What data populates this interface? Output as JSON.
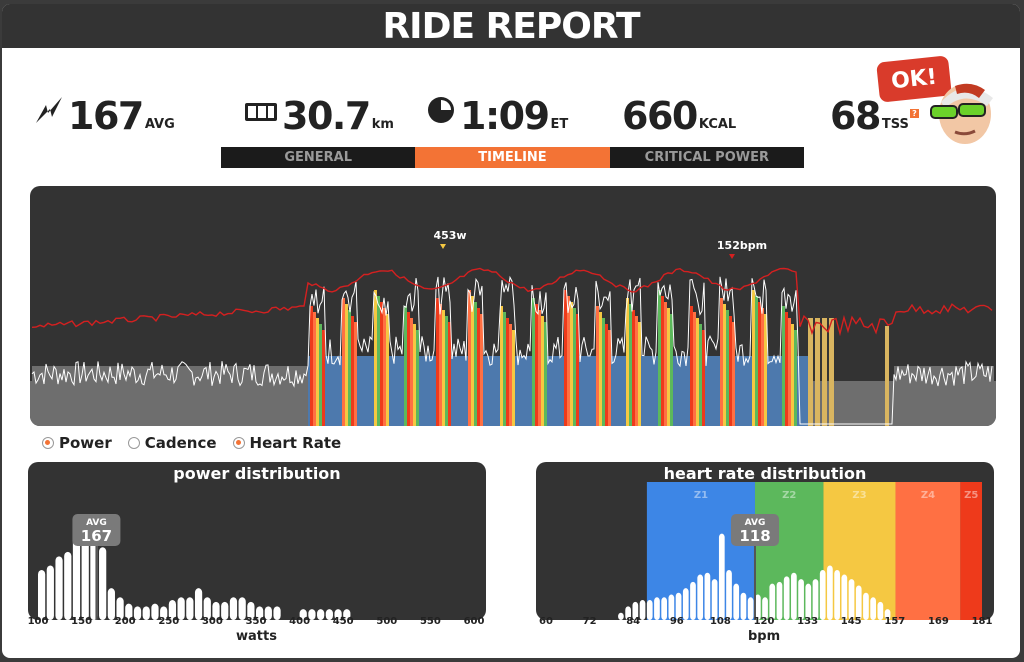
{
  "title": "RIDE REPORT",
  "stats": {
    "power_value": "167",
    "power_unit": "AVG",
    "distance_value": "30.7",
    "distance_unit": "km",
    "time_value": "1:09",
    "time_unit": "ET",
    "energy_value": "660",
    "energy_unit": "KCAL",
    "tss_value": "68",
    "tss_unit": "TSS"
  },
  "badge": "OK!",
  "tabs": [
    {
      "label": "GENERAL",
      "active": false
    },
    {
      "label": "TIMELINE",
      "active": true
    },
    {
      "label": "CRITICAL POWER",
      "active": false
    }
  ],
  "timeline": {
    "peak_power_label": "453w",
    "peak_hr_label": "152bpm"
  },
  "legend": [
    {
      "label": "Power",
      "on": true
    },
    {
      "label": "Cadence",
      "on": false
    },
    {
      "label": "Heart Rate",
      "on": true
    }
  ],
  "colors": {
    "accent": "#f37335",
    "hr_line": "#d42020",
    "panel_dark": "#333333",
    "z1": "#3d86e6",
    "z2": "#5cb85c",
    "z3": "#f5c842",
    "z4": "#ff7043",
    "z5": "#ee3a1b"
  },
  "chart_data": [
    {
      "type": "bar",
      "title": "power distribution",
      "xlabel": "watts",
      "x_ticks": [
        "100",
        "150",
        "200",
        "250",
        "300",
        "350",
        "400",
        "450",
        "500",
        "550",
        "600"
      ],
      "xlim": [
        100,
        600
      ],
      "avg_label": "AVG",
      "avg_value": "167",
      "bins_x": [
        100,
        110,
        120,
        130,
        140,
        150,
        160,
        170,
        180,
        190,
        200,
        210,
        220,
        230,
        240,
        250,
        260,
        270,
        280,
        290,
        300,
        310,
        320,
        330,
        340,
        350,
        360,
        370,
        380,
        390,
        400,
        410,
        420,
        430,
        440,
        450
      ],
      "bins_y": [
        55,
        60,
        70,
        75,
        95,
        110,
        90,
        80,
        35,
        25,
        18,
        15,
        15,
        18,
        15,
        22,
        25,
        25,
        35,
        25,
        20,
        20,
        25,
        25,
        20,
        15,
        15,
        15,
        0,
        0,
        12,
        12,
        12,
        12,
        12,
        12
      ]
    },
    {
      "type": "bar",
      "title": "heart rate distribution",
      "xlabel": "bpm",
      "x_ticks": [
        "60",
        "72",
        "84",
        "96",
        "108",
        "120",
        "133",
        "145",
        "157",
        "169",
        "181"
      ],
      "xlim": [
        60,
        181
      ],
      "zones": [
        "Z1",
        "Z2",
        "Z3",
        "Z4",
        "Z5"
      ],
      "avg_label": "AVG",
      "avg_value": "118",
      "bins_x": [
        80,
        82,
        84,
        86,
        88,
        90,
        92,
        94,
        96,
        98,
        100,
        102,
        104,
        106,
        108,
        110,
        112,
        114,
        116,
        118,
        120,
        122,
        124,
        126,
        128,
        130,
        132,
        134,
        136,
        138,
        140,
        142,
        144,
        146,
        148,
        150,
        152,
        154
      ],
      "bins_y": [
        8,
        15,
        20,
        22,
        22,
        25,
        25,
        28,
        30,
        35,
        42,
        50,
        52,
        45,
        95,
        55,
        40,
        30,
        25,
        28,
        25,
        40,
        42,
        48,
        52,
        45,
        40,
        45,
        55,
        60,
        55,
        50,
        45,
        38,
        30,
        25,
        20,
        12
      ]
    }
  ]
}
